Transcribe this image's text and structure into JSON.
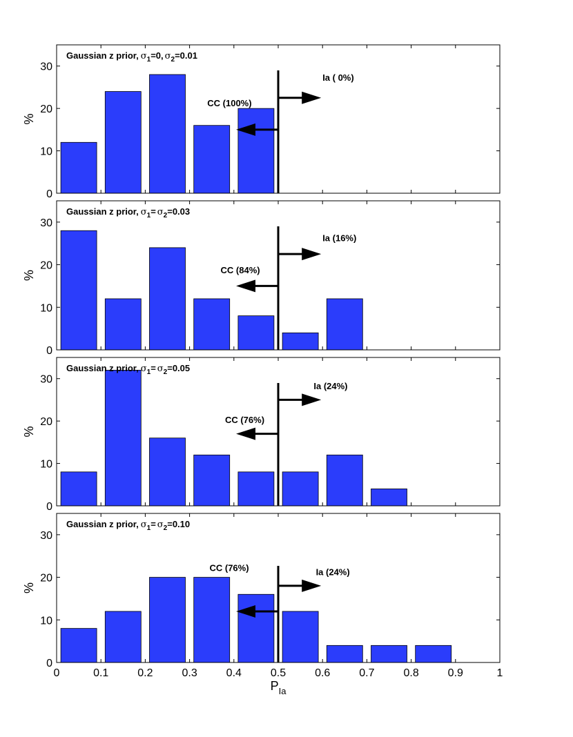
{
  "figure": {
    "xlabel_main": "P",
    "xlabel_sub": "Ia",
    "xticks": [
      "0",
      "0.1",
      "0.2",
      "0.3",
      "0.4",
      "0.5",
      "0.6",
      "0.7",
      "0.8",
      "0.9",
      "1"
    ],
    "colors": {
      "bar": "#2b3dfb",
      "axis": "#000000",
      "background": "#ffffff"
    }
  },
  "chart_data": [
    {
      "type": "bar",
      "title_prefix": "Gaussian z prior,",
      "title_symbol_1": "σ",
      "title_sub_1": "1",
      "title_text_1": "=0,",
      "title_symbol_2": "σ",
      "title_sub_2": "2",
      "title_text_2": "=0.01",
      "ylabel": "%",
      "ylim": [
        0,
        35
      ],
      "xlim": [
        0,
        1
      ],
      "yticks": [
        "0",
        "10",
        "20",
        "30"
      ],
      "bin_centers": [
        0.05,
        0.15,
        0.25,
        0.35,
        0.45,
        0.55,
        0.65,
        0.75,
        0.85
      ],
      "values": [
        12,
        24,
        28,
        16,
        20,
        0,
        0,
        0,
        0
      ],
      "threshold": 0.5,
      "cc_label": "CC (100%)",
      "ia_label": "Ia ( 0%)",
      "cc_arrow_y": 15,
      "ia_arrow_y": 22.5,
      "cc_label_pos": [
        0.34,
        20.5
      ],
      "ia_label_pos": [
        0.6,
        26.5
      ]
    },
    {
      "type": "bar",
      "title_prefix": "Gaussian z prior,",
      "title_symbol_1": "σ",
      "title_sub_1": "1",
      "title_text_1": "=",
      "title_symbol_2": "σ",
      "title_sub_2": "2",
      "title_text_2": "=0.03",
      "ylabel": "%",
      "ylim": [
        0,
        35
      ],
      "xlim": [
        0,
        1
      ],
      "yticks": [
        "0",
        "10",
        "20",
        "30"
      ],
      "bin_centers": [
        0.05,
        0.15,
        0.25,
        0.35,
        0.45,
        0.55,
        0.65,
        0.75,
        0.85
      ],
      "values": [
        28,
        12,
        24,
        12,
        8,
        4,
        12,
        0,
        0
      ],
      "threshold": 0.5,
      "cc_label": "CC (84%)",
      "ia_label": "Ia (16%)",
      "cc_arrow_y": 15,
      "ia_arrow_y": 22.5,
      "cc_label_pos": [
        0.37,
        18
      ],
      "ia_label_pos": [
        0.6,
        25.5
      ]
    },
    {
      "type": "bar",
      "title_prefix": "Gaussian z prior,",
      "title_symbol_1": "σ",
      "title_sub_1": "1",
      "title_text_1": "=",
      "title_symbol_2": "σ",
      "title_sub_2": "2",
      "title_text_2": "=0.05",
      "ylabel": "%",
      "ylim": [
        0,
        35
      ],
      "xlim": [
        0,
        1
      ],
      "yticks": [
        "0",
        "10",
        "20",
        "30"
      ],
      "bin_centers": [
        0.05,
        0.15,
        0.25,
        0.35,
        0.45,
        0.55,
        0.65,
        0.75,
        0.85
      ],
      "values": [
        8,
        32,
        16,
        12,
        8,
        8,
        12,
        4,
        0
      ],
      "threshold": 0.5,
      "cc_label": "CC (76%)",
      "ia_label": "Ia (24%)",
      "cc_arrow_y": 17,
      "ia_arrow_y": 25,
      "cc_label_pos": [
        0.38,
        19.5
      ],
      "ia_label_pos": [
        0.58,
        27.5
      ]
    },
    {
      "type": "bar",
      "title_prefix": "Gaussian z prior,",
      "title_symbol_1": "σ",
      "title_sub_1": "1",
      "title_text_1": "=",
      "title_symbol_2": "σ",
      "title_sub_2": "2",
      "title_text_2": "=0.10",
      "ylabel": "%",
      "ylim": [
        0,
        35
      ],
      "xlim": [
        0,
        1
      ],
      "yticks": [
        "0",
        "10",
        "20",
        "30"
      ],
      "bin_centers": [
        0.05,
        0.15,
        0.25,
        0.35,
        0.45,
        0.55,
        0.65,
        0.75,
        0.85
      ],
      "values": [
        8,
        12,
        20,
        20,
        16,
        12,
        4,
        4,
        4
      ],
      "threshold": 0.5,
      "cc_label": "CC (76%)",
      "ia_label": "Ia (24%)",
      "cc_arrow_y": 12,
      "ia_arrow_y": 18,
      "cc_label_pos": [
        0.345,
        21.5
      ],
      "ia_label_pos": [
        0.585,
        20.5
      ]
    }
  ]
}
